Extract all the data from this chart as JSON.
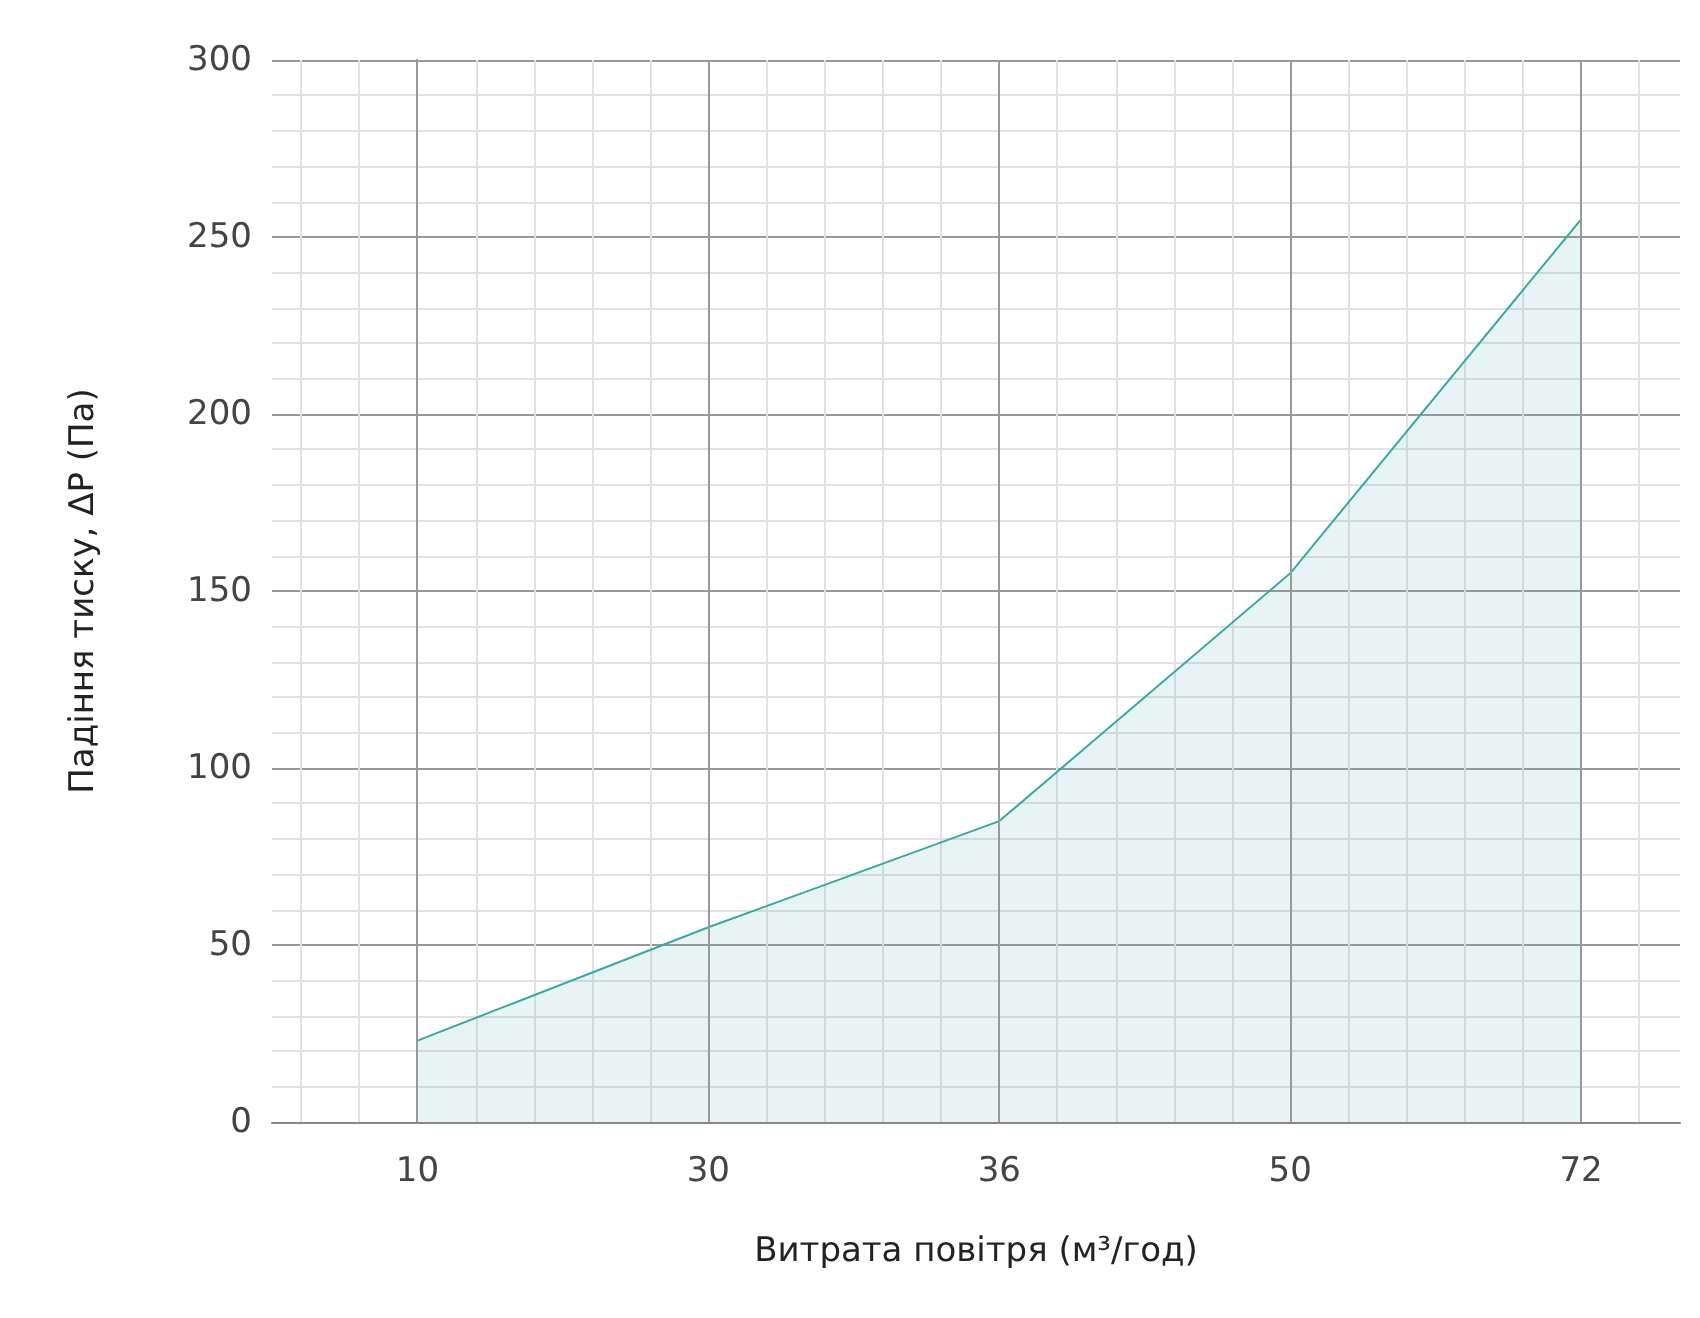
{
  "chart_data": {
    "type": "area",
    "xlabel": "Витрата повітря (м³/год)",
    "ylabel": "Падіння тиску, ΔP (Па)",
    "categories": [
      "10",
      "30",
      "36",
      "50",
      "72"
    ],
    "series": [
      {
        "color": "#3aa8a0",
        "values": [
          23,
          55,
          85,
          155,
          255
        ]
      }
    ],
    "ylim": [
      0,
      300
    ],
    "yticks": [
      0,
      50,
      100,
      150,
      200,
      250,
      300
    ],
    "grid": true
  }
}
